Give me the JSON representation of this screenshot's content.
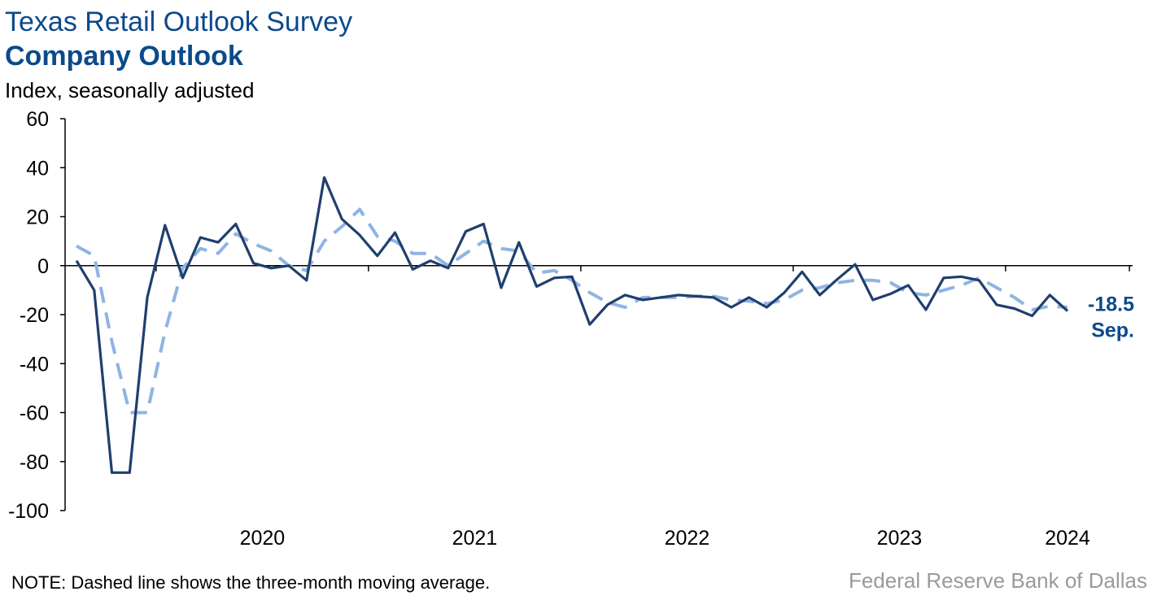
{
  "header": {
    "title": "Texas Retail Outlook Survey",
    "subtitle": "Company Outlook",
    "unit": "Index, seasonally adjusted"
  },
  "footer": {
    "note": "NOTE: Dashed line shows the three-month moving average.",
    "source": "Federal Reserve Bank of Dallas"
  },
  "colors": {
    "series_solid": "#1f3f6e",
    "series_dashed": "#8fb4e3",
    "label": "#0b4a8b",
    "axis": "#000000"
  },
  "chart_data": {
    "type": "line",
    "title": "Company Outlook",
    "ylabel": "Index, seasonally adjusted",
    "xlabel": "",
    "ylim": [
      -100,
      60
    ],
    "yticks": [
      60,
      40,
      20,
      0,
      -20,
      -40,
      -60,
      -80,
      -100
    ],
    "year_ticks": [
      "2020",
      "2021",
      "2022",
      "2023",
      "2024"
    ],
    "x_start": "2019-08",
    "x_end": "2024-09",
    "grid": false,
    "end_annotation": {
      "value": "-18.5",
      "month": "Sep."
    },
    "series": [
      {
        "style": "solid",
        "values": [
          2,
          -10,
          -84.5,
          -84.5,
          -13,
          16.5,
          -5,
          11.5,
          9.5,
          17,
          1,
          -1,
          0,
          -6,
          36,
          19,
          12.5,
          4,
          13.5,
          -1.5,
          2,
          -1,
          14,
          17,
          -9,
          9.5,
          -8.5,
          -5,
          -4.5,
          -24,
          -16,
          -12,
          -14,
          -13,
          -12,
          -12.5,
          -13,
          -17,
          -13,
          -17,
          -11,
          -2.5,
          -12,
          -5.5,
          0.5,
          -14,
          -11.5,
          -8,
          -18,
          -5,
          -4.5,
          -6,
          -16,
          -17.5,
          -20.5,
          -12,
          -18.5
        ]
      },
      {
        "style": "dashed",
        "label": "three-month moving average",
        "values": [
          8,
          4,
          -31,
          -60,
          -60,
          -27,
          -1,
          7,
          5,
          13,
          9,
          6,
          0,
          -2,
          10,
          16,
          23,
          12,
          10,
          5,
          5,
          0,
          5,
          10,
          7,
          6,
          -3,
          -2,
          -6,
          -11,
          -15,
          -17,
          -13,
          -13,
          -13,
          -12.5,
          -12.5,
          -14,
          -14.5,
          -15.5,
          -14,
          -10,
          -9,
          -7,
          -6,
          -6,
          -7,
          -11,
          -12,
          -10,
          -8,
          -5,
          -9,
          -13,
          -18,
          -16.5,
          -17
        ]
      }
    ]
  }
}
